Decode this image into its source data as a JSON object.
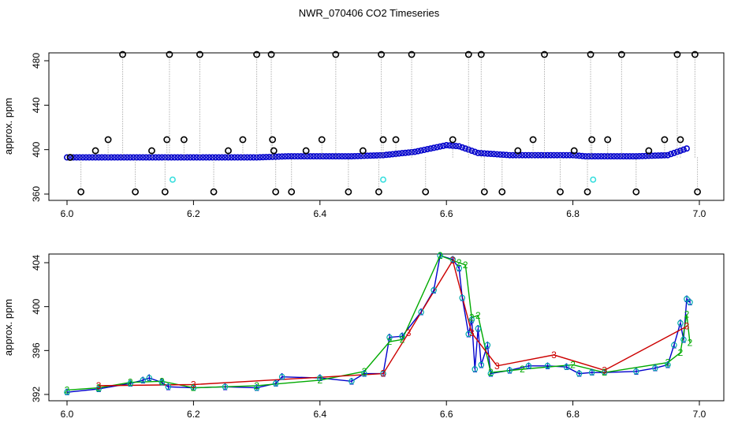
{
  "figure": {
    "title": "NWR_070406  CO2 Timeseries"
  },
  "chart_data": [
    {
      "type": "scatter",
      "title": "NWR_070406  CO2 Timeseries",
      "xlabel": "",
      "ylabel": "approx. ppm",
      "xlim": [
        6.0,
        7.0
      ],
      "ylim": [
        350,
        495
      ],
      "x_ticks": [
        "6.0",
        "6.2",
        "6.4",
        "6.6",
        "6.8",
        "7.0"
      ],
      "y_ticks": [
        "360",
        "400",
        "440",
        "480"
      ],
      "grid": false,
      "series": [
        {
          "color": "#0000cc",
          "points": [
            [
              6.0,
              393
            ],
            [
              6.05,
              393
            ],
            [
              6.1,
              393
            ],
            [
              6.15,
              393
            ],
            [
              6.2,
              393
            ],
            [
              6.25,
              393
            ],
            [
              6.3,
              393
            ],
            [
              6.35,
              394
            ],
            [
              6.4,
              394
            ],
            [
              6.45,
              394
            ],
            [
              6.5,
              395
            ],
            [
              6.55,
              398
            ],
            [
              6.6,
              404
            ],
            [
              6.62,
              403
            ],
            [
              6.65,
              397
            ],
            [
              6.7,
              395
            ],
            [
              6.75,
              395
            ],
            [
              6.8,
              395
            ],
            [
              6.82,
              394
            ],
            [
              6.85,
              394
            ],
            [
              6.9,
              394
            ],
            [
              6.95,
              395
            ],
            [
              6.98,
              401
            ]
          ]
        },
        {
          "color": "#000000",
          "points": [
            [
              6.005,
              393
            ],
            [
              6.022,
              362
            ],
            [
              6.045,
              399
            ],
            [
              6.065,
              409
            ],
            [
              6.088,
              489
            ],
            [
              6.108,
              362
            ],
            [
              6.134,
              399
            ],
            [
              6.155,
              362
            ],
            [
              6.158,
              409
            ],
            [
              6.162,
              489
            ],
            [
              6.185,
              409
            ],
            [
              6.21,
              489
            ],
            [
              6.232,
              362
            ],
            [
              6.255,
              399
            ],
            [
              6.278,
              409
            ],
            [
              6.3,
              489
            ],
            [
              6.323,
              489
            ],
            [
              6.325,
              409
            ],
            [
              6.327,
              399
            ],
            [
              6.33,
              362
            ],
            [
              6.355,
              362
            ],
            [
              6.378,
              399
            ],
            [
              6.403,
              409
            ],
            [
              6.425,
              489
            ],
            [
              6.445,
              362
            ],
            [
              6.468,
              399
            ],
            [
              6.493,
              362
            ],
            [
              6.497,
              489
            ],
            [
              6.5,
              409
            ],
            [
              6.52,
              409
            ],
            [
              6.545,
              489
            ],
            [
              6.567,
              362
            ],
            [
              6.61,
              409
            ],
            [
              6.635,
              489
            ],
            [
              6.655,
              489
            ],
            [
              6.66,
              362
            ],
            [
              6.688,
              362
            ],
            [
              6.713,
              399
            ],
            [
              6.737,
              409
            ],
            [
              6.755,
              489
            ],
            [
              6.78,
              362
            ],
            [
              6.802,
              399
            ],
            [
              6.823,
              362
            ],
            [
              6.828,
              489
            ],
            [
              6.83,
              409
            ],
            [
              6.855,
              409
            ],
            [
              6.877,
              489
            ],
            [
              6.9,
              362
            ],
            [
              6.92,
              399
            ],
            [
              6.945,
              409
            ],
            [
              6.965,
              489
            ],
            [
              6.97,
              409
            ],
            [
              6.993,
              489
            ],
            [
              6.997,
              362
            ]
          ]
        },
        {
          "color": "#33dddd",
          "points": [
            [
              6.167,
              373
            ],
            [
              6.5,
              373
            ],
            [
              6.832,
              373
            ]
          ]
        }
      ]
    },
    {
      "type": "line",
      "title": "",
      "xlabel": "",
      "ylabel": "approx. ppm",
      "xlim": [
        6.0,
        7.0
      ],
      "ylim": [
        391.6,
        405.2
      ],
      "x_ticks": [
        "6.0",
        "6.2",
        "6.4",
        "6.6",
        "6.8",
        "7.0"
      ],
      "y_ticks": [
        "392",
        "396",
        "400",
        "404"
      ],
      "grid": false,
      "point_labels": [
        "1",
        "2",
        "3"
      ],
      "series": [
        {
          "color": "#0000cc",
          "points": [
            [
              6.0,
              392.2
            ],
            [
              6.05,
              392.5
            ],
            [
              6.1,
              393.0
            ],
            [
              6.12,
              393.3
            ],
            [
              6.13,
              393.5
            ],
            [
              6.15,
              393.1
            ],
            [
              6.16,
              392.7
            ],
            [
              6.2,
              392.6
            ],
            [
              6.25,
              392.7
            ],
            [
              6.3,
              392.6
            ],
            [
              6.33,
              393.0
            ],
            [
              6.34,
              393.6
            ],
            [
              6.4,
              393.5
            ],
            [
              6.45,
              393.2
            ],
            [
              6.47,
              393.9
            ],
            [
              6.5,
              393.9
            ],
            [
              6.51,
              397.2
            ],
            [
              6.53,
              397.3
            ],
            [
              6.56,
              399.5
            ],
            [
              6.58,
              401.5
            ],
            [
              6.59,
              404.7
            ],
            [
              6.61,
              404.3
            ],
            [
              6.62,
              403.5
            ],
            [
              6.625,
              400.8
            ],
            [
              6.635,
              397.5
            ],
            [
              6.64,
              398.8
            ],
            [
              6.645,
              394.3
            ],
            [
              6.65,
              398.0
            ],
            [
              6.655,
              394.7
            ],
            [
              6.665,
              396.5
            ],
            [
              6.67,
              393.9
            ],
            [
              6.7,
              394.2
            ],
            [
              6.73,
              394.6
            ],
            [
              6.76,
              394.6
            ],
            [
              6.79,
              394.5
            ],
            [
              6.81,
              393.9
            ],
            [
              6.83,
              394.0
            ],
            [
              6.85,
              394.0
            ],
            [
              6.9,
              394.1
            ],
            [
              6.93,
              394.4
            ],
            [
              6.95,
              394.7
            ],
            [
              6.96,
              396.5
            ],
            [
              6.97,
              398.5
            ],
            [
              6.975,
              397.0
            ],
            [
              6.98,
              400.7
            ],
            [
              6.985,
              400.4
            ]
          ]
        },
        {
          "color": "#00aa00",
          "points": [
            [
              6.0,
              392.4
            ],
            [
              6.05,
              392.6
            ],
            [
              6.1,
              393.1
            ],
            [
              6.15,
              393.2
            ],
            [
              6.2,
              392.6
            ],
            [
              6.3,
              392.8
            ],
            [
              6.4,
              393.3
            ],
            [
              6.47,
              394.1
            ],
            [
              6.51,
              396.8
            ],
            [
              6.53,
              397.0
            ],
            [
              6.59,
              405.0
            ],
            [
              6.62,
              404.0
            ],
            [
              6.63,
              403.8
            ],
            [
              6.64,
              399.0
            ],
            [
              6.65,
              399.2
            ],
            [
              6.67,
              394.0
            ],
            [
              6.72,
              394.3
            ],
            [
              6.8,
              394.7
            ],
            [
              6.85,
              394.0
            ],
            [
              6.95,
              394.9
            ],
            [
              6.97,
              395.8
            ],
            [
              6.98,
              399.3
            ],
            [
              6.985,
              396.7
            ]
          ]
        },
        {
          "color": "#cc0000",
          "points": [
            [
              6.05,
              392.8
            ],
            [
              6.2,
              392.9
            ],
            [
              6.5,
              393.9
            ],
            [
              6.54,
              397.6
            ],
            [
              6.61,
              404.2
            ],
            [
              6.64,
              397.6
            ],
            [
              6.68,
              394.6
            ],
            [
              6.77,
              395.6
            ],
            [
              6.85,
              394.2
            ],
            [
              6.98,
              398.2
            ]
          ]
        }
      ]
    }
  ]
}
